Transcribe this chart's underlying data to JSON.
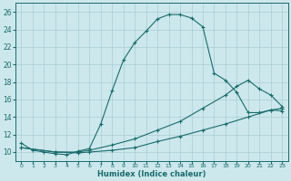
{
  "xlabel": "Humidex (Indice chaleur)",
  "bg_color": "#cce8ed",
  "grid_color": "#aaccd4",
  "line_color": "#1a6b6b",
  "xlim": [
    -0.5,
    23.5
  ],
  "ylim": [
    9.0,
    27.0
  ],
  "xticks": [
    0,
    1,
    2,
    3,
    4,
    5,
    6,
    7,
    8,
    9,
    10,
    11,
    12,
    13,
    14,
    15,
    16,
    17,
    18,
    19,
    20,
    21,
    22,
    23
  ],
  "yticks": [
    10,
    12,
    14,
    16,
    18,
    20,
    22,
    24,
    26
  ],
  "curve1_x": [
    0,
    1,
    2,
    3,
    4,
    5,
    6,
    7,
    8,
    9,
    10,
    11,
    12,
    13,
    14,
    15,
    16,
    17,
    18,
    19,
    20,
    21,
    22,
    23
  ],
  "curve1_y": [
    11.0,
    10.2,
    10.0,
    9.8,
    9.7,
    10.1,
    10.4,
    13.2,
    17.0,
    20.5,
    22.5,
    23.8,
    25.2,
    25.7,
    25.7,
    25.3,
    24.3,
    19.0,
    18.2,
    16.8,
    14.5,
    14.5,
    14.8,
    14.7
  ],
  "curve2_x": [
    0,
    3,
    5,
    6,
    8,
    10,
    12,
    14,
    16,
    18,
    20,
    22,
    23
  ],
  "curve2_y": [
    10.5,
    10.0,
    9.9,
    10.0,
    10.2,
    10.5,
    11.2,
    11.8,
    12.5,
    13.2,
    14.0,
    14.8,
    15.0
  ],
  "curve3_x": [
    0,
    3,
    5,
    6,
    8,
    10,
    12,
    14,
    16,
    18,
    19,
    20,
    21,
    22,
    23
  ],
  "curve3_y": [
    10.5,
    10.0,
    10.0,
    10.2,
    10.8,
    11.5,
    12.5,
    13.5,
    15.0,
    16.5,
    17.5,
    18.2,
    17.2,
    16.5,
    15.2
  ]
}
